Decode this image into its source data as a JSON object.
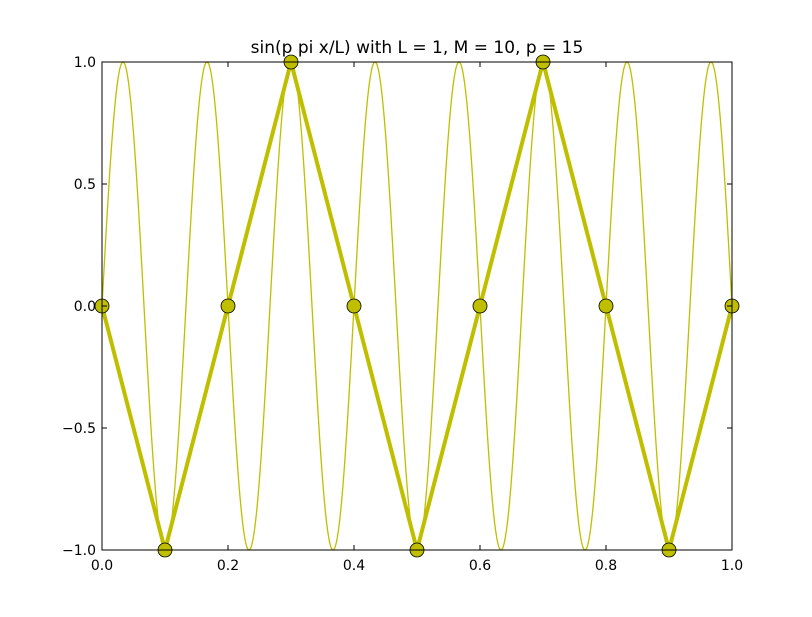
{
  "chart_data": {
    "type": "line",
    "title": "sin(p pi x/L) with L = 1, M = 10, p = 15",
    "xlabel": "",
    "ylabel": "",
    "xlim": [
      0.0,
      1.0
    ],
    "ylim": [
      -1.0,
      1.0
    ],
    "x_ticks": [
      "0.0",
      "0.2",
      "0.4",
      "0.6",
      "0.8",
      "1.0"
    ],
    "y_ticks": [
      "1.0",
      "0.5",
      "0.0",
      "−0.5",
      "−1.0"
    ],
    "grid": false,
    "legend": "none",
    "color": "#bfbf00",
    "series": [
      {
        "style": "thin line",
        "function": "sin(15*pi*x)",
        "x_range": [
          0,
          1
        ]
      },
      {
        "style": "thick line with circle markers",
        "x": [
          0.0,
          0.1,
          0.2,
          0.3,
          0.4,
          0.5,
          0.6,
          0.7,
          0.8,
          0.9,
          1.0
        ],
        "y": [
          0.0,
          -1.0,
          0.0,
          1.0,
          0.0,
          -1.0,
          0.0,
          1.0,
          0.0,
          -1.0,
          0.0
        ]
      }
    ]
  }
}
